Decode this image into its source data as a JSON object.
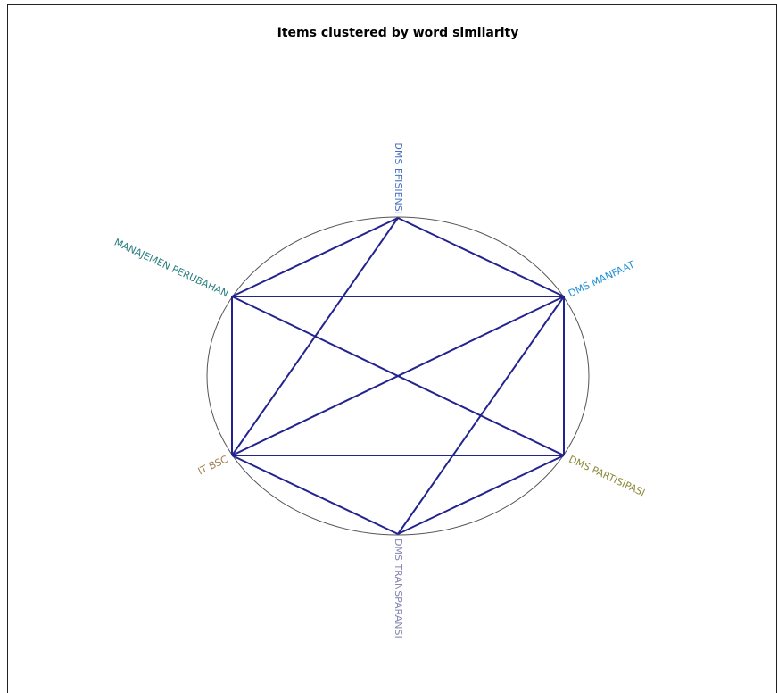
{
  "title": "Items clustered by word similarity",
  "nodes": [
    {
      "label": "DMS EFISIENSI"
    },
    {
      "label": "DMS MANFAAT"
    },
    {
      "label": "DMS PARTISIPASI"
    },
    {
      "label": "DMS TRANSPARANSI"
    },
    {
      "label": "IT BSC"
    },
    {
      "label": "MANAJEMEN PERUBAHAN"
    }
  ]
}
